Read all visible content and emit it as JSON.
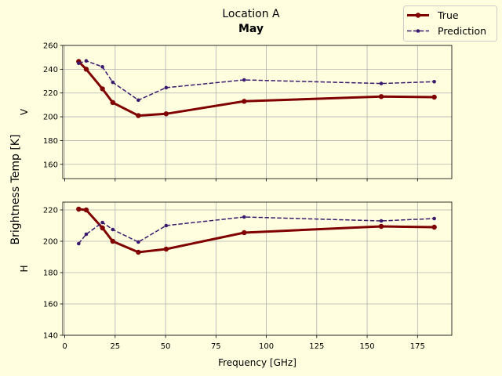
{
  "chart_data": {
    "type": "line",
    "title": "Location A",
    "subtitle": "May",
    "shared_ylabel": "Brightness Temp [K]",
    "xlabel": "Frequency [GHz]",
    "xlim": [
      -1,
      192
    ],
    "xticks": [
      0,
      25,
      50,
      75,
      100,
      125,
      150,
      175
    ],
    "grid": true,
    "legend": {
      "placement": "top-right",
      "entries": [
        "True",
        "Prediction"
      ]
    },
    "colors": {
      "true": "#800000",
      "prediction": "#3b1a6e"
    },
    "x": [
      6.9,
      10.65,
      18.7,
      23.8,
      36.5,
      50.3,
      89.0,
      157.0,
      183.3
    ],
    "panels": [
      {
        "ylabel": "V",
        "ylim": [
          148,
          260
        ],
        "yticks": [
          160,
          180,
          200,
          220,
          240,
          260
        ],
        "series": [
          {
            "name": "True",
            "values": [
              246.5,
              240.0,
              223.5,
              212.0,
              201.0,
              202.5,
              213.0,
              217.0,
              216.5
            ]
          },
          {
            "name": "Prediction",
            "values": [
              245.0,
              247.0,
              242.0,
              229.0,
              214.0,
              224.5,
              231.0,
              228.0,
              229.5
            ]
          }
        ]
      },
      {
        "ylabel": "H",
        "ylim": [
          140,
          225
        ],
        "yticks": [
          140,
          160,
          180,
          200,
          220
        ],
        "series": [
          {
            "name": "True",
            "values": [
              220.5,
              220.0,
              208.5,
              200.0,
              193.0,
              195.0,
              205.5,
              209.5,
              209.0
            ]
          },
          {
            "name": "Prediction",
            "values": [
              198.5,
              204.5,
              212.0,
              207.5,
              199.5,
              210.0,
              215.5,
              213.0,
              214.5
            ]
          }
        ]
      }
    ]
  }
}
